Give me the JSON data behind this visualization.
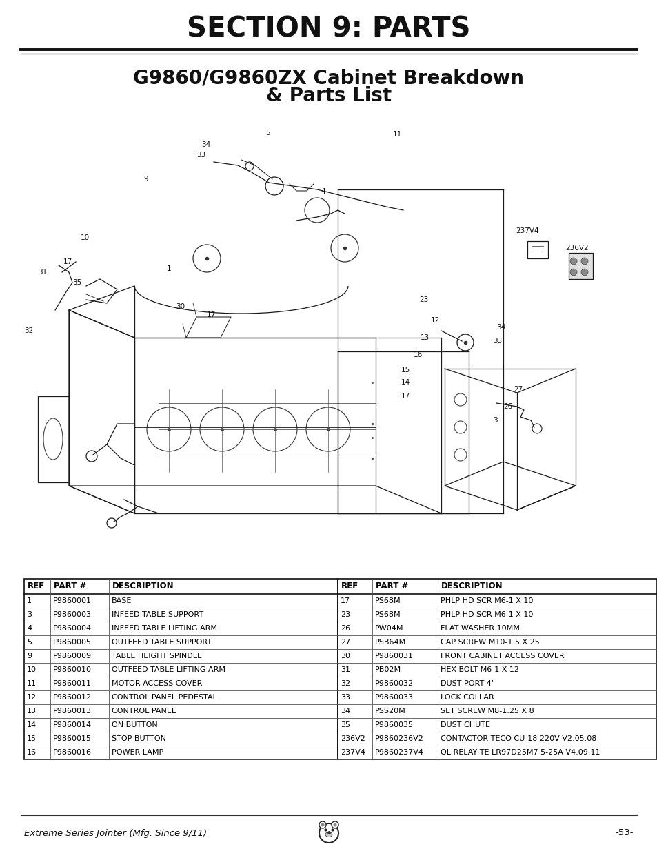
{
  "title": "SECTION 9: PARTS",
  "subtitle_line1": "G9860/G9860ZX Cabinet Breakdown",
  "subtitle_line2": "& Parts List",
  "footer_left": "Extreme Series Jointer (Mfg. Since 9/11)",
  "footer_right": "-53-",
  "bg_color": "#ffffff",
  "text_color": "#000000",
  "table_left_headers": [
    "REF",
    "PART #",
    "DESCRIPTION"
  ],
  "table_left_rows": [
    [
      "1",
      "P9860001",
      "BASE"
    ],
    [
      "3",
      "P9860003",
      "INFEED TABLE SUPPORT"
    ],
    [
      "4",
      "P9860004",
      "INFEED TABLE LIFTING ARM"
    ],
    [
      "5",
      "P9860005",
      "OUTFEED TABLE SUPPORT"
    ],
    [
      "9",
      "P9860009",
      "TABLE HEIGHT SPINDLE"
    ],
    [
      "10",
      "P9860010",
      "OUTFEED TABLE LIFTING ARM"
    ],
    [
      "11",
      "P9860011",
      "MOTOR ACCESS COVER"
    ],
    [
      "12",
      "P9860012",
      "CONTROL PANEL PEDESTAL"
    ],
    [
      "13",
      "P9860013",
      "CONTROL PANEL"
    ],
    [
      "14",
      "P9860014",
      "ON BUTTON"
    ],
    [
      "15",
      "P9860015",
      "STOP BUTTON"
    ],
    [
      "16",
      "P9860016",
      "POWER LAMP"
    ]
  ],
  "table_right_headers": [
    "REF",
    "PART #",
    "DESCRIPTION"
  ],
  "table_right_rows": [
    [
      "17",
      "PS68M",
      "PHLP HD SCR M6-1 X 10"
    ],
    [
      "23",
      "PS68M",
      "PHLP HD SCR M6-1 X 10"
    ],
    [
      "26",
      "PW04M",
      "FLAT WASHER 10MM"
    ],
    [
      "27",
      "PSB64M",
      "CAP SCREW M10-1.5 X 25"
    ],
    [
      "30",
      "P9860031",
      "FRONT CABINET ACCESS COVER"
    ],
    [
      "31",
      "PB02M",
      "HEX BOLT M6-1 X 12"
    ],
    [
      "32",
      "P9860032",
      "DUST PORT 4\""
    ],
    [
      "33",
      "P9860033",
      "LOCK COLLAR"
    ],
    [
      "34",
      "PSS20M",
      "SET SCREW M8-1.25 X 8"
    ],
    [
      "35",
      "P9860035",
      "DUST CHUTE"
    ],
    [
      "236V2",
      "P9860236V2",
      "CONTACTOR TECO CU-18 220V V2.05.08"
    ],
    [
      "237V4",
      "P9860237V4",
      "OL RELAY TE LR97D25M7 5-25A V4.09.11"
    ]
  ]
}
